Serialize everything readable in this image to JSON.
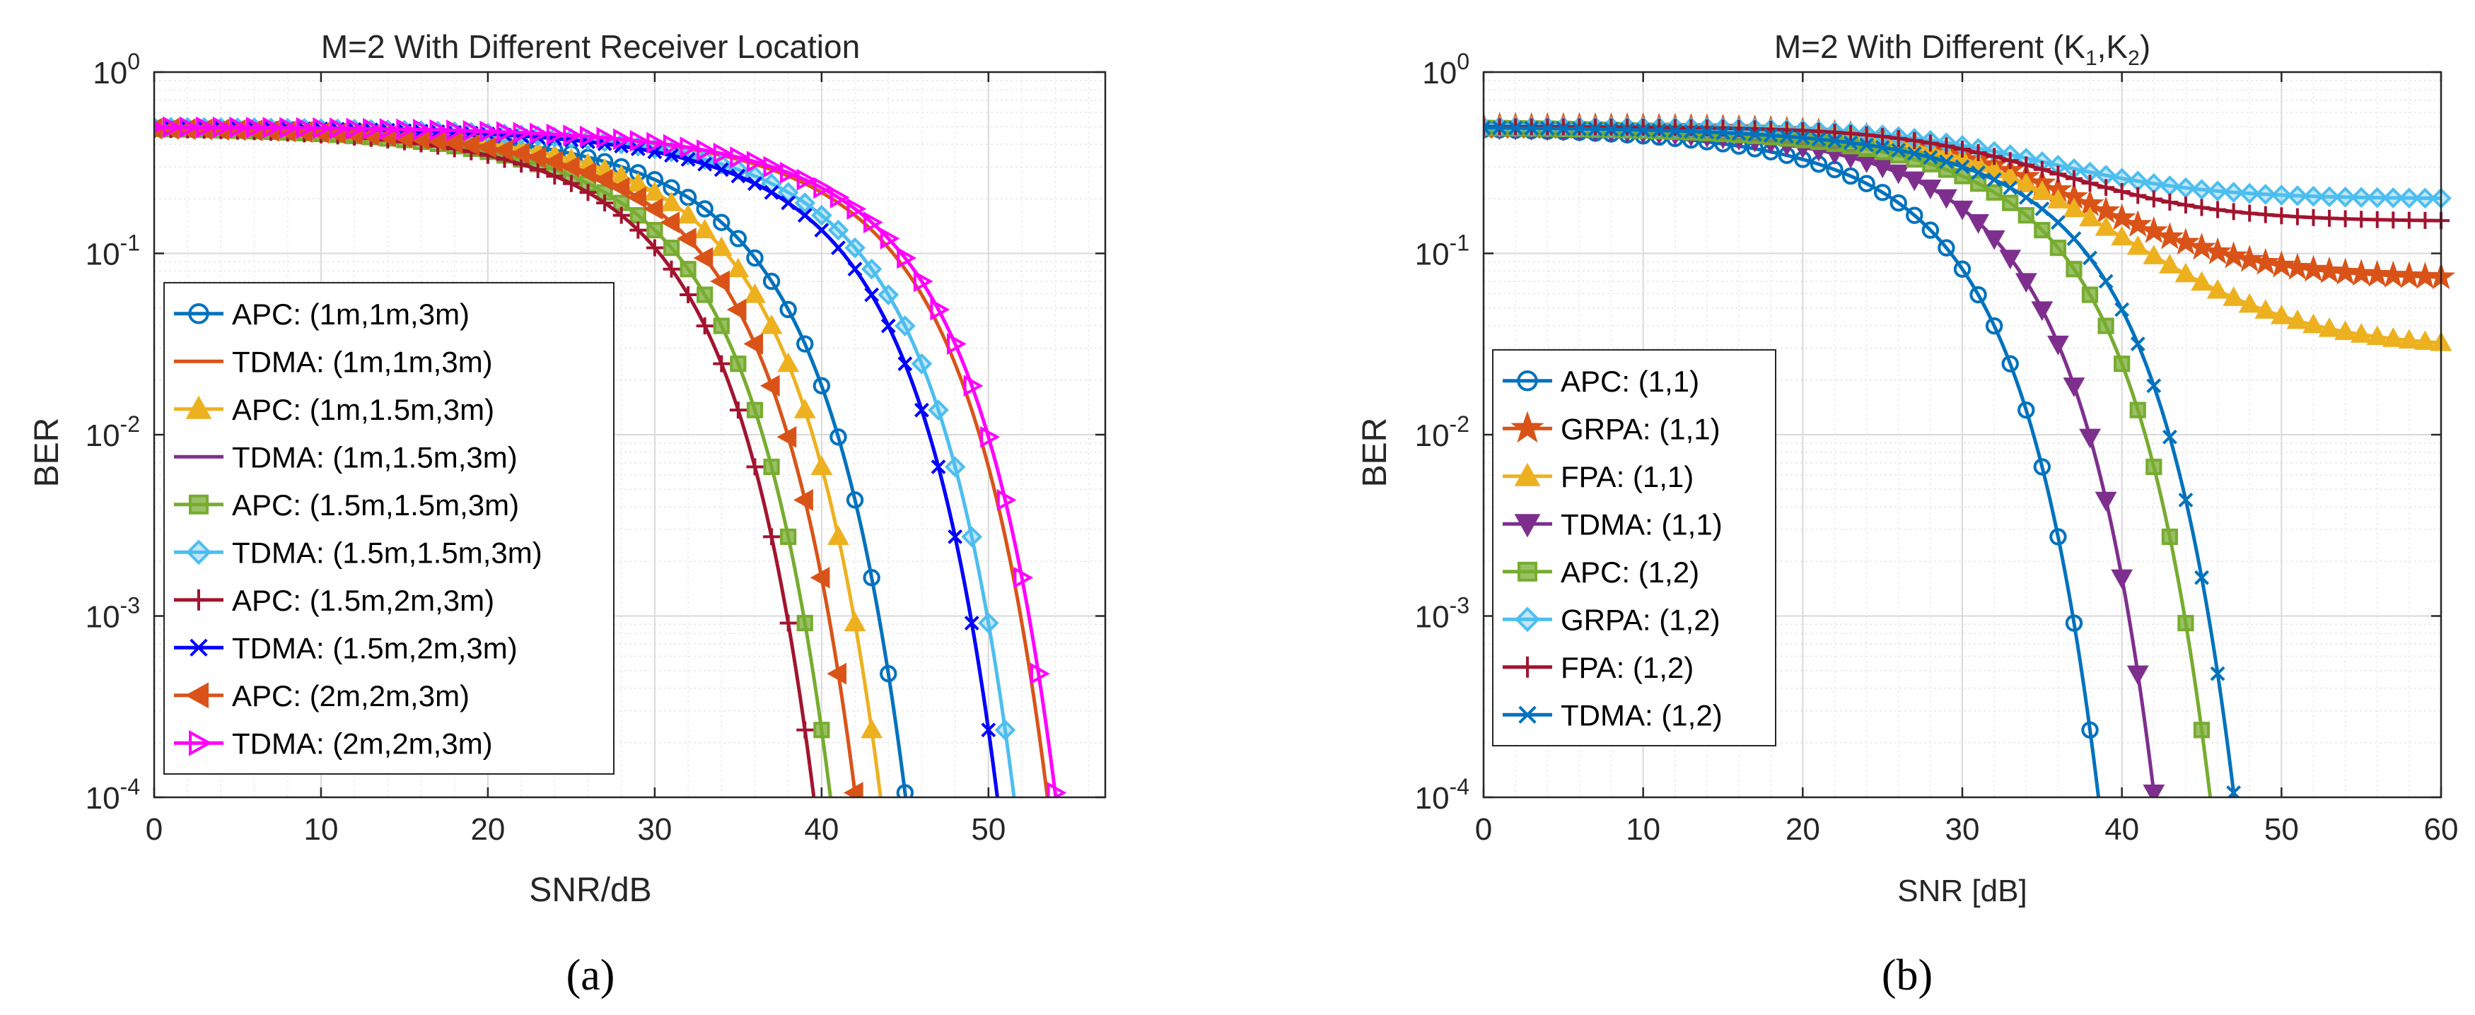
{
  "chart_data": [
    {
      "type": "line",
      "panel": "a",
      "caption": "(a)",
      "title": "M=2 With Different Receiver Location",
      "xlabel": "SNR/dB",
      "ylabel": "BER",
      "yscale": "log",
      "xlim": [
        0,
        57
      ],
      "ylim": [
        0.0001,
        1
      ],
      "xticks": [
        0,
        10,
        20,
        30,
        40,
        50
      ],
      "xtick_labels": [
        "0",
        "10",
        "20",
        "30",
        "40",
        "50"
      ],
      "yticks": [
        0.0001,
        0.001,
        0.01,
        0.1,
        1
      ],
      "ytick_labels": [
        [
          "10",
          "-4"
        ],
        [
          "10",
          "-3"
        ],
        [
          "10",
          "-2"
        ],
        [
          "10",
          "-1"
        ],
        [
          "10",
          "0"
        ]
      ],
      "grid": true,
      "legend_position": "bottom-left",
      "series": [
        {
          "name": "APC: (1m,1m,3m)",
          "color": "#0072BD",
          "marker": "circle",
          "threshold": 48.0
        },
        {
          "name": "TDMA: (1m,1m,3m)",
          "color": "#D95319",
          "marker": "none",
          "threshold": 56.5
        },
        {
          "name": "APC: (1m,1.5m,3m)",
          "color": "#EDB120",
          "marker": "triangle-up",
          "threshold": 46.5
        },
        {
          "name": "TDMA: (1m,1.5m,3m)",
          "color": "#7E2F8E",
          "marker": "none",
          "threshold": 53.5
        },
        {
          "name": "APC: (1.5m,1.5m,3m)",
          "color": "#77AC30",
          "marker": "square",
          "threshold": 43.5
        },
        {
          "name": "TDMA: (1.5m,1.5m,3m)",
          "color": "#4DBEEE",
          "marker": "diamond",
          "threshold": 54.5
        },
        {
          "name": "APC: (1.5m,2m,3m)",
          "color": "#A2142F",
          "marker": "plus",
          "threshold": 42.5
        },
        {
          "name": "TDMA: (1.5m,2m,3m)",
          "color": "#0000FF",
          "marker": "x",
          "threshold": 53.5
        },
        {
          "name": "APC: (2m,2m,3m)",
          "color": "#D95319",
          "marker": "triangle-left",
          "threshold": 45.0
        },
        {
          "name": "TDMA: (2m,2m,3m)",
          "color": "#FF00FF",
          "marker": "triangle-right",
          "threshold": 57.0
        }
      ]
    },
    {
      "type": "line",
      "panel": "b",
      "caption": "(b)",
      "title": "M=2 With Different (K1,K2)",
      "title_parts": {
        "prefix": "M=2 With Different (K",
        "sub1": "1",
        "mid": ",K",
        "sub2": "2",
        "suffix": ")"
      },
      "xlabel": "SNR [dB]",
      "ylabel": "BER",
      "yscale": "log",
      "xlim": [
        0,
        60
      ],
      "ylim": [
        0.0001,
        1
      ],
      "xticks": [
        0,
        10,
        20,
        30,
        40,
        50,
        60
      ],
      "xtick_labels": [
        "0",
        "10",
        "20",
        "30",
        "40",
        "50",
        "60"
      ],
      "yticks": [
        0.0001,
        0.001,
        0.01,
        0.1,
        1
      ],
      "ytick_labels": [
        [
          "10",
          "-4"
        ],
        [
          "10",
          "-3"
        ],
        [
          "10",
          "-2"
        ],
        [
          "10",
          "-1"
        ],
        [
          "10",
          "0"
        ]
      ],
      "grid": true,
      "legend_position": "bottom-left",
      "series": [
        {
          "name": "APC: (1,1)",
          "color": "#0072BD",
          "marker": "circle",
          "threshold": 41.5
        },
        {
          "name": "GRPA: (1,1)",
          "color": "#D95319",
          "marker": "pentagram",
          "floor": 0.072
        },
        {
          "name": "FPA: (1,1)",
          "color": "#EDB120",
          "marker": "triangle-up",
          "floor": 0.03
        },
        {
          "name": "TDMA: (1,1)",
          "color": "#7E2F8E",
          "marker": "triangle-down",
          "threshold": 45.0
        },
        {
          "name": "APC: (1,2)",
          "color": "#77AC30",
          "marker": "square",
          "threshold": 48.5
        },
        {
          "name": "GRPA: (1,2)",
          "color": "#4DBEEE",
          "marker": "diamond",
          "floor": 0.2
        },
        {
          "name": "FPA: (1,2)",
          "color": "#A2142F",
          "marker": "plus",
          "floor": 0.15
        },
        {
          "name": "TDMA: (1,2)",
          "color": "#0072BD",
          "marker": "x",
          "threshold": 50.0
        }
      ]
    }
  ]
}
